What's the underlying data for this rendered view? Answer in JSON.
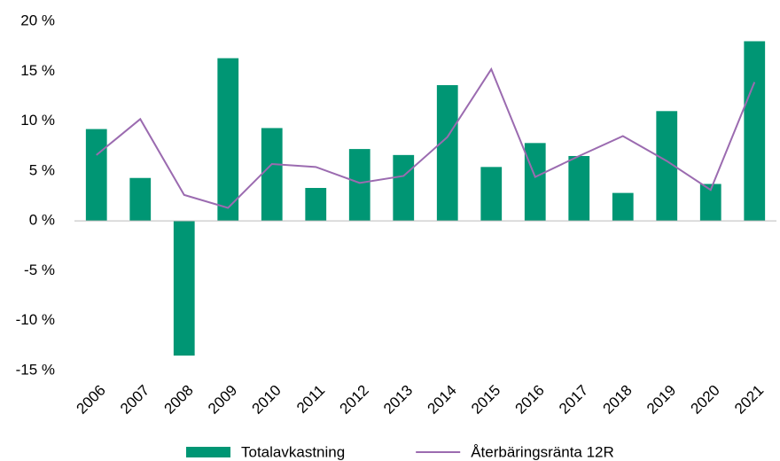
{
  "chart_data": {
    "type": "bar_line",
    "categories": [
      "2006",
      "2007",
      "2008",
      "2009",
      "2010",
      "2011",
      "2012",
      "2013",
      "2014",
      "2015",
      "2016",
      "2017",
      "2018",
      "2019",
      "2020",
      "2021"
    ],
    "series": [
      {
        "name": "Totalavkastning",
        "type": "bar",
        "color": "#009674",
        "values": [
          9.2,
          4.3,
          -13.5,
          16.3,
          9.3,
          3.3,
          7.2,
          6.6,
          13.6,
          5.4,
          7.8,
          6.5,
          2.8,
          11.0,
          3.7,
          18.0
        ]
      },
      {
        "name": "Återbäringsränta 12R",
        "type": "line",
        "color": "#9b6bb0",
        "values": [
          6.6,
          10.2,
          2.6,
          1.3,
          5.7,
          5.4,
          3.8,
          4.5,
          8.4,
          15.2,
          4.4,
          6.5,
          8.5,
          6.0,
          3.1,
          13.9
        ]
      }
    ],
    "ylim": [
      -15,
      20
    ],
    "yticks": [
      {
        "value": -15,
        "label": "-15 %"
      },
      {
        "value": -10,
        "label": "-10 %"
      },
      {
        "value": -5,
        "label": "-5 %"
      },
      {
        "value": 0,
        "label": "0 %"
      },
      {
        "value": 5,
        "label": "5 %"
      },
      {
        "value": 10,
        "label": "10 %"
      },
      {
        "value": 15,
        "label": "15 %"
      },
      {
        "value": 20,
        "label": "20 %"
      }
    ],
    "grid": false,
    "legend": "bottom"
  }
}
